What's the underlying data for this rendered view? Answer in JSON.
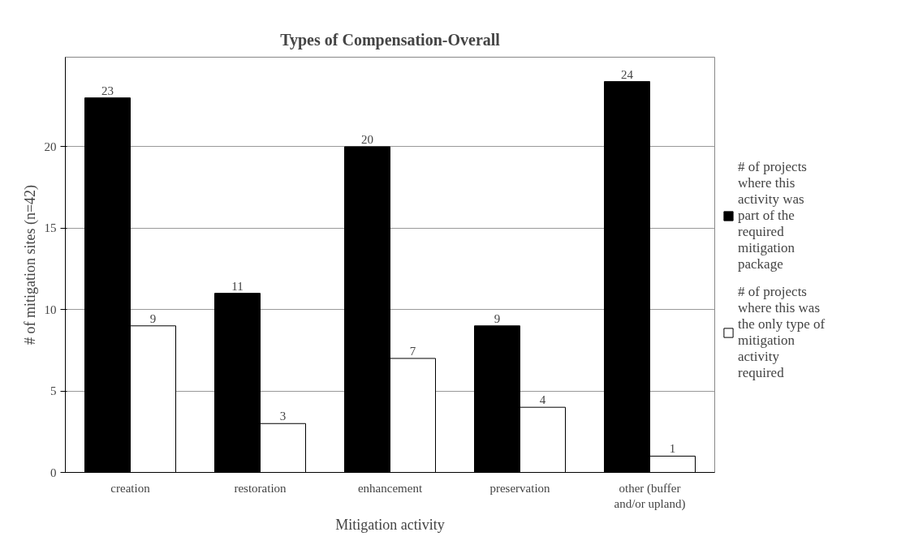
{
  "chart_data": {
    "type": "bar",
    "title": "Types of Compensation-Overall",
    "xlabel": "Mitigation activity",
    "ylabel": "# of mitigation sites (n=42)",
    "categories": [
      "creation",
      "restoration",
      "enhancement",
      "preservation",
      "other (buffer and/or upland)"
    ],
    "series": [
      {
        "name": "# of projects where this activity was part of the required mitigation package",
        "color": "#000000",
        "values": [
          23,
          11,
          20,
          9,
          24
        ]
      },
      {
        "name": "# of projects where this was the only type of mitigation activity required",
        "color": "#ffffff",
        "values": [
          9,
          3,
          7,
          4,
          1
        ]
      }
    ],
    "ylim": [
      0,
      25.5
    ],
    "yticks": [
      0,
      5,
      10,
      15,
      20
    ],
    "grid": "y",
    "legend": "right",
    "data_labels": true
  }
}
